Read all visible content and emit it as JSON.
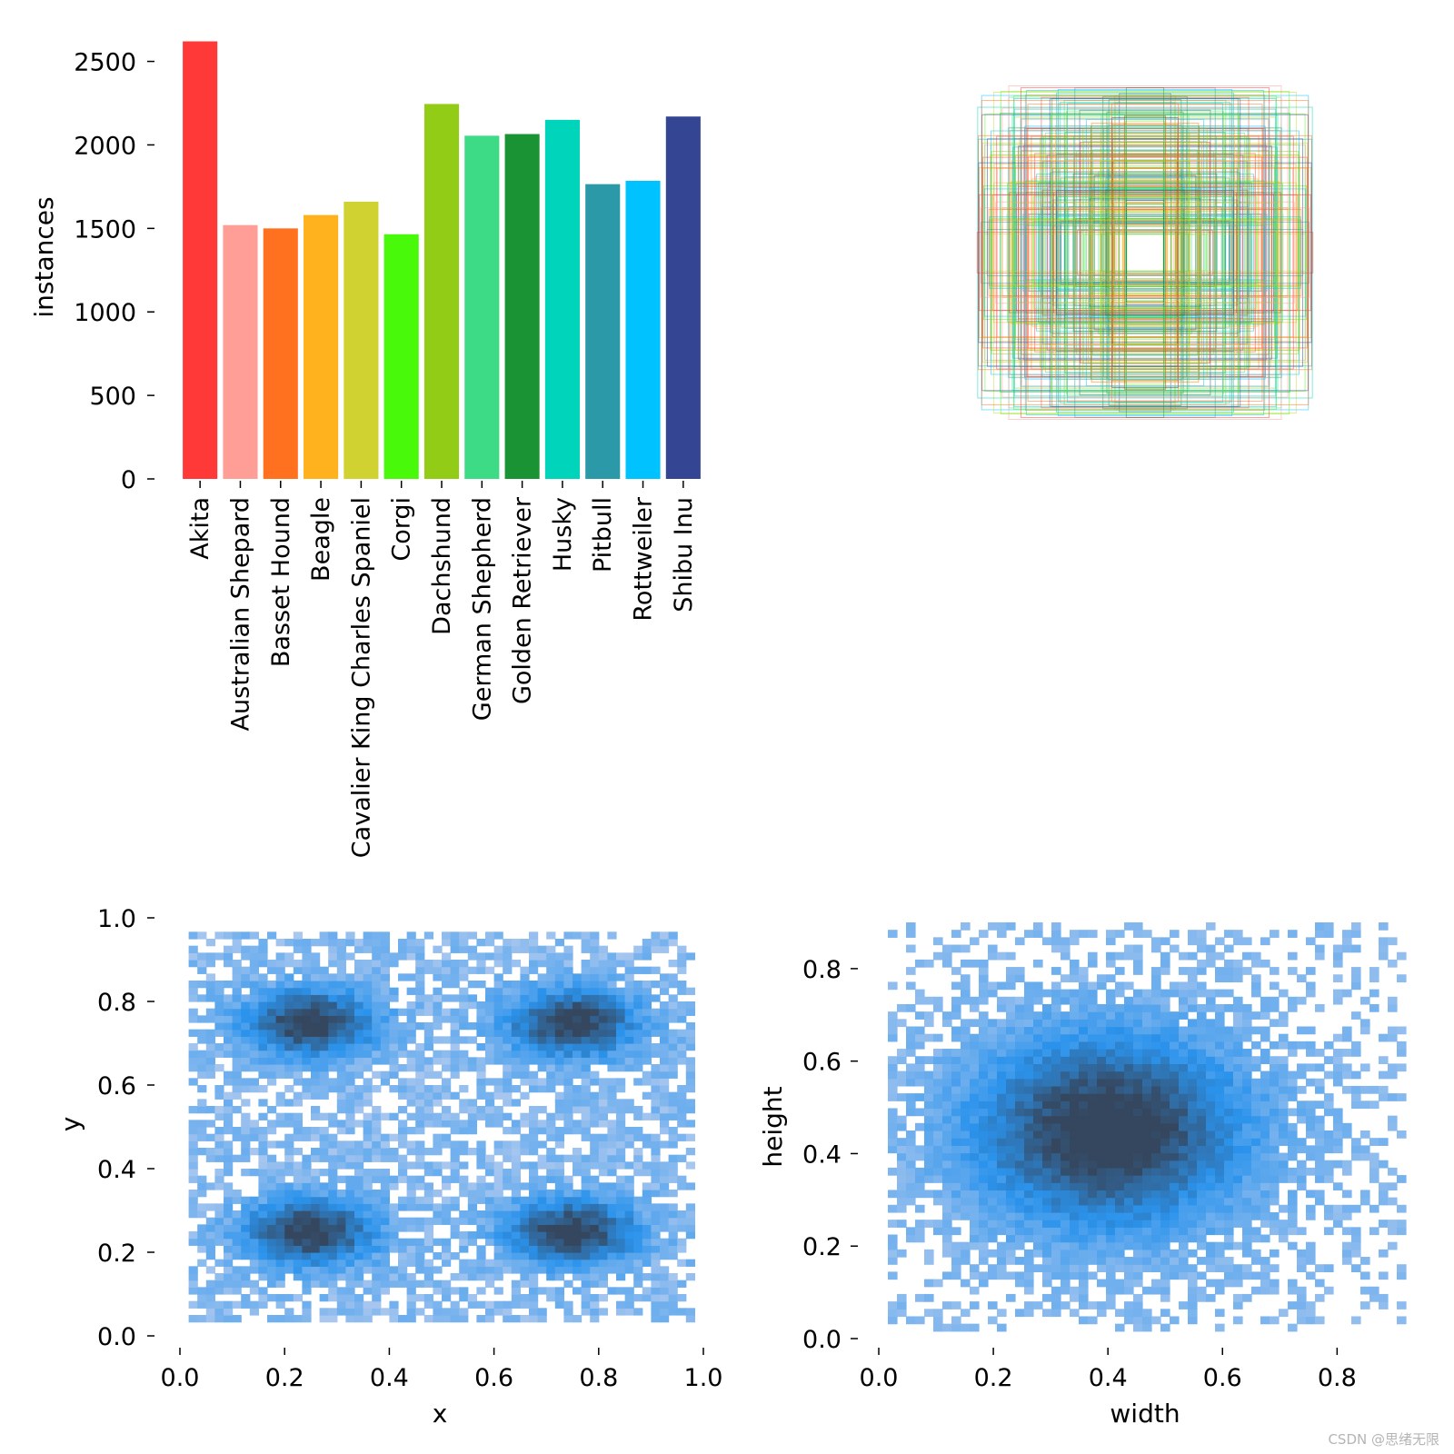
{
  "chart_data": [
    {
      "type": "bar",
      "id": "instances",
      "ylabel": "instances",
      "ylim": [
        0,
        2650
      ],
      "yticks": [
        0,
        500,
        1000,
        1500,
        2000,
        2500
      ],
      "categories": [
        "Akita",
        "Australian Shepard",
        "Basset Hound",
        "Beagle",
        "Cavalier King Charles Spaniel",
        "Corgi",
        "Dachshund",
        "German Shepherd",
        "Golden Retriever",
        "Husky",
        "Pitbull",
        "Rottweiler",
        "Shibu Inu"
      ],
      "values": [
        2620,
        1520,
        1500,
        1580,
        1660,
        1465,
        2245,
        2055,
        2065,
        2150,
        1765,
        1785,
        2170
      ],
      "colors": [
        "#FF3838",
        "#FF9D97",
        "#FF701F",
        "#FFB21D",
        "#CFD231",
        "#48F90A",
        "#92CC17",
        "#3DDB86",
        "#1A9334",
        "#00D4BB",
        "#2C99A8",
        "#00C2FF",
        "#344593"
      ]
    },
    {
      "type": "box-overlay",
      "id": "box-shapes",
      "description_free": true
    },
    {
      "type": "heatmap",
      "id": "xy-histogram",
      "xlabel": "x",
      "ylabel": "y",
      "xlim": [
        0,
        1
      ],
      "ylim": [
        0,
        1
      ],
      "xticks": [
        "0.0",
        "0.2",
        "0.4",
        "0.6",
        "0.8",
        "1.0"
      ],
      "yticks": [
        "0.0",
        "0.2",
        "0.4",
        "0.6",
        "0.8",
        "1.0"
      ],
      "clusters": [
        [
          0.25,
          0.75
        ],
        [
          0.75,
          0.75
        ],
        [
          0.25,
          0.25
        ],
        [
          0.75,
          0.25
        ]
      ]
    },
    {
      "type": "heatmap",
      "id": "wh-histogram",
      "xlabel": "width",
      "ylabel": "height",
      "xlim": [
        0,
        0.92
      ],
      "ylim": [
        0,
        0.9
      ],
      "xticks": [
        "0.0",
        "0.2",
        "0.4",
        "0.6",
        "0.8"
      ],
      "yticks": [
        "0.0",
        "0.2",
        "0.4",
        "0.6",
        "0.8"
      ],
      "center": [
        0.4,
        0.45
      ]
    }
  ],
  "watermark": "CSDN @思绪无限",
  "colors": {
    "hist_light": "#a9c7ef",
    "hist_mid": "#2b93ec",
    "hist_dark": "#35475f"
  }
}
